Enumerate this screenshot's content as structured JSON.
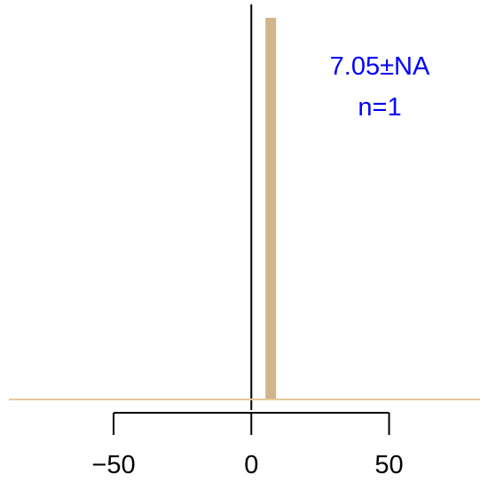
{
  "chart_data": {
    "type": "bar",
    "x": [
      7.05
    ],
    "values": [
      1
    ],
    "xlim": [
      -88,
      83
    ],
    "ylim": [
      0,
      1
    ],
    "x_ticks": [
      -50,
      0,
      50
    ],
    "x_tick_labels": [
      "−50",
      "0",
      "50"
    ],
    "annotations": {
      "mean_sd": "7.05±NA",
      "n_label": "n=1"
    },
    "grid": false,
    "colors": {
      "bar": "#d2b48c",
      "baseline": "#e8c89c",
      "axis": "#000000",
      "annotation": "#0000ff"
    }
  }
}
